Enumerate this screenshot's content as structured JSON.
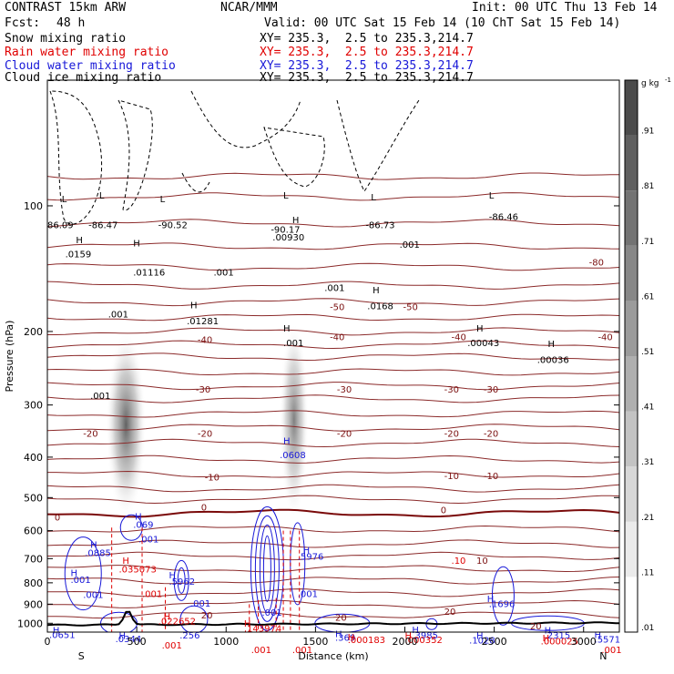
{
  "header": {
    "model": "CONTRAST 15km ARW",
    "center": "NCAR/MMM",
    "init": "Init: 00 UTC Thu 13 Feb 14",
    "fcst_label": "Fcst:",
    "fcst_value": "48 h",
    "valid": "Valid: 00 UTC Sat 15 Feb 14 (10 ChT Sat 15 Feb 14)"
  },
  "fields": [
    {
      "name": "Snow mixing ratio",
      "xy": "XY= 235.3,  2.5 to 235.3,214.7",
      "color": "#000000"
    },
    {
      "name": "Rain water mixing ratio",
      "xy": "XY= 235.3,  2.5 to 235.3,214.7",
      "color": "#e00000"
    },
    {
      "name": "Cloud water mixing ratio",
      "xy": "XY= 235.3,  2.5 to 235.3,214.7",
      "color": "#1818d8"
    },
    {
      "name": "Cloud ice mixing ratio",
      "xy": "XY= 235.3,  2.5 to 235.3,214.7",
      "color": "#000000"
    }
  ],
  "chart_data": {
    "type": "heatmap",
    "xlabel": "Distance (km)",
    "ylabel": "Pressure (hPa)",
    "xlim": [
      0,
      3200
    ],
    "ylim": [
      1050,
      50
    ],
    "y_scale": "log",
    "x_ticks": [
      0,
      500,
      1000,
      1500,
      2000,
      2500,
      3000
    ],
    "y_ticks": [
      100,
      200,
      300,
      400,
      500,
      600,
      700,
      800,
      900,
      1000
    ],
    "x_end_labels": {
      "left": "S",
      "right": "N"
    },
    "colorbar": {
      "unit": "g kg",
      "unit_exp": "-1",
      "ticks": [
        ".01",
        ".11",
        ".21",
        ".31",
        ".41",
        ".51",
        ".61",
        ".71",
        ".81",
        ".91"
      ]
    },
    "snow_maxima": [
      {
        "x": 440,
        "p": 390,
        "intensity": 0.75
      },
      {
        "x": 1380,
        "p": 420,
        "intensity": 0.5
      }
    ],
    "temperature_contours": [
      {
        "label": "-80",
        "p": 110
      },
      {
        "label": "-50",
        "p": 178
      },
      {
        "label": "-40",
        "p": 210
      },
      {
        "label": "-30",
        "p": 280
      },
      {
        "label": "-20",
        "p": 360
      },
      {
        "label": "-10",
        "p": 450
      },
      {
        "label": "0",
        "p": 545
      },
      {
        "label": "10",
        "p": 690
      },
      {
        "label": "20",
        "p": 865
      }
    ],
    "point_labels": [
      {
        "text": "86.09",
        "x": 0,
        "p": 113,
        "color": "#000000"
      },
      {
        "text": "-86.47",
        "x": 230,
        "p": 113,
        "color": "#000000"
      },
      {
        "text": "-90.52",
        "x": 620,
        "p": 113,
        "color": "#000000"
      },
      {
        "text": "-90.17",
        "x": 1250,
        "p": 116,
        "color": "#000000"
      },
      {
        "text": "-86.73",
        "x": 1780,
        "p": 113,
        "color": "#000000"
      },
      {
        "text": "-86.46",
        "x": 2470,
        "p": 108,
        "color": "#000000"
      },
      {
        "text": "L",
        "x": 80,
        "p": 98,
        "color": "#000000"
      },
      {
        "text": "L",
        "x": 290,
        "p": 96,
        "color": "#000000"
      },
      {
        "text": "L",
        "x": 630,
        "p": 98,
        "color": "#000000"
      },
      {
        "text": "L",
        "x": 1320,
        "p": 96,
        "color": "#000000"
      },
      {
        "text": "L",
        "x": 1810,
        "p": 97,
        "color": "#000000"
      },
      {
        "text": "L",
        "x": 2470,
        "p": 96,
        "color": "#000000"
      },
      {
        "text": "H",
        "x": 1370,
        "p": 110,
        "color": "#000000"
      },
      {
        "text": ".00930",
        "x": 1260,
        "p": 121,
        "color": "#000000"
      },
      {
        "text": ".001",
        "x": 1970,
        "p": 126,
        "color": "#000000"
      },
      {
        "text": "H",
        "x": 160,
        "p": 123,
        "color": "#000000"
      },
      {
        "text": ".0159",
        "x": 100,
        "p": 133,
        "color": "#000000"
      },
      {
        "text": "H",
        "x": 480,
        "p": 125,
        "color": "#000000"
      },
      {
        "text": ".01116",
        "x": 480,
        "p": 147,
        "color": "#000000"
      },
      {
        "text": ".001",
        "x": 930,
        "p": 147,
        "color": "#000000"
      },
      {
        "text": ".001",
        "x": 1550,
        "p": 160,
        "color": "#000000"
      },
      {
        "text": "H",
        "x": 1820,
        "p": 162,
        "color": "#000000"
      },
      {
        "text": ".0168",
        "x": 1790,
        "p": 177,
        "color": "#000000"
      },
      {
        "text": "H",
        "x": 800,
        "p": 176,
        "color": "#000000"
      },
      {
        "text": ".01281",
        "x": 780,
        "p": 192,
        "color": "#000000"
      },
      {
        "text": ".001",
        "x": 340,
        "p": 185,
        "color": "#000000"
      },
      {
        "text": "H",
        "x": 1320,
        "p": 200,
        "color": "#000000"
      },
      {
        "text": ".001",
        "x": 1320,
        "p": 217,
        "color": "#000000"
      },
      {
        "text": "H",
        "x": 2400,
        "p": 200,
        "color": "#000000"
      },
      {
        "text": ".00043",
        "x": 2350,
        "p": 217,
        "color": "#000000"
      },
      {
        "text": "H",
        "x": 2800,
        "p": 218,
        "color": "#000000"
      },
      {
        "text": ".00036",
        "x": 2740,
        "p": 238,
        "color": "#000000"
      },
      {
        "text": ".001",
        "x": 240,
        "p": 290,
        "color": "#000000"
      },
      {
        "text": "H",
        "x": 1320,
        "p": 372,
        "color": "#1818d8"
      },
      {
        "text": ".0608",
        "x": 1300,
        "p": 402,
        "color": "#1818d8"
      },
      {
        "text": "H",
        "x": 490,
        "p": 565,
        "color": "#1818d8"
      },
      {
        "text": ".069",
        "x": 480,
        "p": 590,
        "color": "#1818d8"
      },
      {
        "text": ".001",
        "x": 510,
        "p": 640,
        "color": "#1818d8"
      },
      {
        "text": "H",
        "x": 240,
        "p": 660,
        "color": "#1818d8"
      },
      {
        "text": ".0885",
        "x": 210,
        "p": 690,
        "color": "#1818d8"
      },
      {
        "text": "H",
        "x": 1430,
        "p": 680,
        "color": "#1818d8"
      },
      {
        "text": ".5976",
        "x": 1400,
        "p": 705,
        "color": "#1818d8"
      },
      {
        "text": "H",
        "x": 420,
        "p": 720,
        "color": "#e00000"
      },
      {
        "text": ".035073",
        "x": 400,
        "p": 755,
        "color": "#e00000"
      },
      {
        "text": ".10",
        "x": 2260,
        "p": 720,
        "color": "#e00000"
      },
      {
        "text": "H",
        "x": 130,
        "p": 770,
        "color": "#1818d8"
      },
      {
        "text": ".001",
        "x": 130,
        "p": 800,
        "color": "#1818d8"
      },
      {
        "text": "H",
        "x": 680,
        "p": 780,
        "color": "#1818d8"
      },
      {
        "text": ".5962",
        "x": 680,
        "p": 808,
        "color": "#1818d8"
      },
      {
        "text": ".001",
        "x": 200,
        "p": 870,
        "color": "#1818d8"
      },
      {
        "text": ".001",
        "x": 530,
        "p": 865,
        "color": "#e00000"
      },
      {
        "text": ".001",
        "x": 1400,
        "p": 865,
        "color": "#1818d8"
      },
      {
        "text": ".001",
        "x": 800,
        "p": 912,
        "color": "#1818d8"
      },
      {
        "text": "H",
        "x": 2460,
        "p": 890,
        "color": "#1818d8"
      },
      {
        "text": ".1696",
        "x": 2470,
        "p": 915,
        "color": "#1818d8"
      },
      {
        "text": ".001",
        "x": 1200,
        "p": 960,
        "color": "#1818d8"
      },
      {
        "text": "H",
        "x": 650,
        "p": 980,
        "color": "#e00000"
      },
      {
        "text": ".022652",
        "x": 620,
        "p": 1005,
        "color": "#e00000"
      },
      {
        "text": "H",
        "x": 1100,
        "p": 1020,
        "color": "#e00000"
      },
      {
        "text": ".143974",
        "x": 1100,
        "p": 1047,
        "color": "#e00000"
      },
      {
        "text": "H",
        "x": 30,
        "p": 1058,
        "color": "#1818d8"
      },
      {
        "text": ".0651",
        "x": 10,
        "p": 1085,
        "color": "#1818d8"
      },
      {
        "text": "H",
        "x": 1610,
        "p": 1080,
        "color": "#1818d8"
      },
      {
        "text": ".369",
        "x": 1610,
        "p": 1100,
        "color": "#1818d8"
      },
      {
        "text": "H",
        "x": 1680,
        "p": 1098,
        "color": "#e00000"
      },
      {
        "text": ".000183",
        "x": 1680,
        "p": 1115,
        "color": "#e00000"
      },
      {
        "text": "H",
        "x": 2040,
        "p": 1055,
        "color": "#1818d8"
      },
      {
        "text": "H",
        "x": 2000,
        "p": 1090,
        "color": "#e00000"
      },
      {
        "text": ".3985",
        "x": 2040,
        "p": 1088,
        "color": "#1818d8"
      },
      {
        "text": ".000352",
        "x": 2000,
        "p": 1115,
        "color": "#e00000"
      },
      {
        "text": "H",
        "x": 2400,
        "p": 1090,
        "color": "#1818d8"
      },
      {
        "text": ".1028",
        "x": 2360,
        "p": 1118,
        "color": "#1818d8"
      },
      {
        "text": "H",
        "x": 2780,
        "p": 1058,
        "color": "#1818d8"
      },
      {
        "text": ".2315",
        "x": 2780,
        "p": 1088,
        "color": "#1818d8"
      },
      {
        "text": "H",
        "x": 2770,
        "p": 1103,
        "color": "#e00000"
      },
      {
        "text": ".000025",
        "x": 2760,
        "p": 1125,
        "color": "#e00000"
      },
      {
        "text": "H",
        "x": 3060,
        "p": 1085,
        "color": "#1818d8"
      },
      {
        "text": ".5571",
        "x": 3060,
        "p": 1112,
        "color": "#1818d8"
      },
      {
        "text": "H",
        "x": 400,
        "p": 1090,
        "color": "#1818d8"
      },
      {
        "text": ".0344",
        "x": 380,
        "p": 1110,
        "color": "#1818d8"
      },
      {
        "text": ".256",
        "x": 740,
        "p": 1088,
        "color": "#1818d8"
      },
      {
        "text": ".001",
        "x": 640,
        "p": 1150,
        "color": "#e00000"
      },
      {
        "text": ".001",
        "x": 1140,
        "p": 1180,
        "color": "#e00000"
      },
      {
        "text": ".001",
        "x": 1370,
        "p": 1180,
        "color": "#e00000"
      },
      {
        "text": ".001",
        "x": 3100,
        "p": 1180,
        "color": "#e00000"
      },
      {
        "text": "-80",
        "x": 3030,
        "p": 139,
        "color": "#7b1010"
      },
      {
        "text": "-50",
        "x": 1580,
        "p": 178,
        "color": "#7b1010"
      },
      {
        "text": "-50",
        "x": 1990,
        "p": 178,
        "color": "#7b1010"
      },
      {
        "text": "-40",
        "x": 1580,
        "p": 210,
        "color": "#7b1010"
      },
      {
        "text": "-40",
        "x": 2260,
        "p": 210,
        "color": "#7b1010"
      },
      {
        "text": "-40",
        "x": 3080,
        "p": 210,
        "color": "#7b1010"
      },
      {
        "text": "-40",
        "x": 840,
        "p": 213,
        "color": "#7b1010"
      },
      {
        "text": "-30",
        "x": 830,
        "p": 280,
        "color": "#7b1010"
      },
      {
        "text": "-30",
        "x": 1620,
        "p": 280,
        "color": "#7b1010"
      },
      {
        "text": "-30",
        "x": 2220,
        "p": 280,
        "color": "#7b1010"
      },
      {
        "text": "-30",
        "x": 2440,
        "p": 280,
        "color": "#7b1010"
      },
      {
        "text": "-20",
        "x": 200,
        "p": 357,
        "color": "#7b1010"
      },
      {
        "text": "-20",
        "x": 840,
        "p": 357,
        "color": "#7b1010"
      },
      {
        "text": "-20",
        "x": 1620,
        "p": 357,
        "color": "#7b1010"
      },
      {
        "text": "-20",
        "x": 2220,
        "p": 357,
        "color": "#7b1010"
      },
      {
        "text": "-20",
        "x": 2440,
        "p": 357,
        "color": "#7b1010"
      },
      {
        "text": "-10",
        "x": 880,
        "p": 455,
        "color": "#7b1010"
      },
      {
        "text": "-10",
        "x": 2220,
        "p": 452,
        "color": "#7b1010"
      },
      {
        "text": "-10",
        "x": 2440,
        "p": 452,
        "color": "#7b1010"
      },
      {
        "text": "0",
        "x": 860,
        "p": 537,
        "color": "#7b1010"
      },
      {
        "text": "0",
        "x": 2200,
        "p": 545,
        "color": "#7b1010"
      },
      {
        "text": "0",
        "x": 40,
        "p": 568,
        "color": "#7b1010"
      },
      {
        "text": "10",
        "x": 2400,
        "p": 720,
        "color": "#7b1010"
      },
      {
        "text": "20",
        "x": 2220,
        "p": 955,
        "color": "#7b1010"
      },
      {
        "text": "20",
        "x": 860,
        "p": 975,
        "color": "#7b1010"
      },
      {
        "text": "20",
        "x": 1610,
        "p": 985,
        "color": "#7b1010"
      },
      {
        "text": "20",
        "x": 2700,
        "p": 1035,
        "color": "#7b1010"
      }
    ]
  }
}
